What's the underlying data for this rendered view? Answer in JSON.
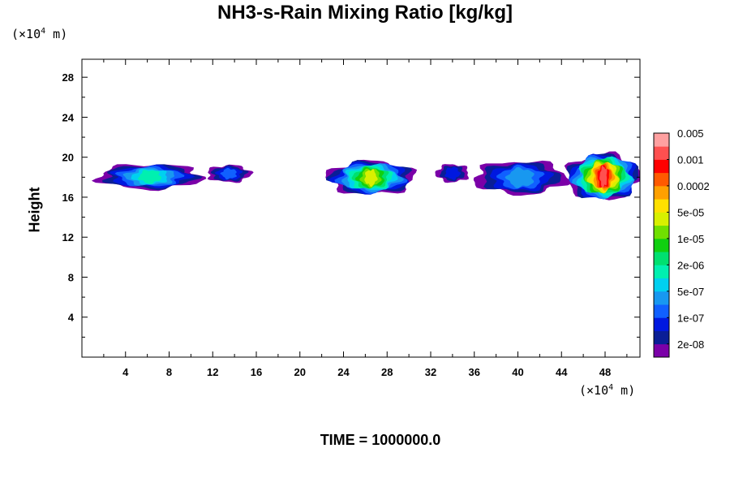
{
  "chart_data": {
    "type": "heatmap",
    "title": "NH3-s-Rain Mixing Ratio [kg/kg]",
    "ylabel": "Height",
    "x_unit": {
      "prefix": "(×10",
      "exp": "4",
      "suffix": " m)"
    },
    "y_unit": {
      "prefix": "(×10",
      "exp": "4",
      "suffix": " m)"
    },
    "footer": "TIME = 1000000.0",
    "xlim": [
      0,
      51.2
    ],
    "ylim": [
      0,
      29.8
    ],
    "x_ticks": [
      4,
      8,
      12,
      16,
      20,
      24,
      28,
      32,
      36,
      40,
      44,
      48
    ],
    "y_ticks": [
      4,
      8,
      12,
      16,
      20,
      24,
      28
    ],
    "colorbar": {
      "colors": [
        "#7b00a8",
        "#0a1e96",
        "#0018e0",
        "#1060ff",
        "#1898f0",
        "#00d0f0",
        "#00f0b0",
        "#00e070",
        "#10d010",
        "#70e000",
        "#d8f000",
        "#ffe000",
        "#ffa000",
        "#ff5a00",
        "#ff0000",
        "#ff5050",
        "#ffa0a0"
      ],
      "labels": [
        "2e-08",
        "1e-07",
        "5e-07",
        "2e-06",
        "1e-05",
        "5e-05",
        "0.0002",
        "0.001",
        "0.005"
      ]
    },
    "regions": [
      {
        "x": [
          1.5,
          11.0
        ],
        "y": [
          16.8,
          19.3
        ],
        "peak": 6
      },
      {
        "x": [
          11.5,
          15.5
        ],
        "y": [
          17.5,
          19.2
        ],
        "peak": 3
      },
      {
        "x": [
          22.5,
          30.5
        ],
        "y": [
          16.3,
          19.6
        ],
        "peak": 10
      },
      {
        "x": [
          32.5,
          35.5
        ],
        "y": [
          17.5,
          19.3
        ],
        "peak": 2
      },
      {
        "x": [
          36.0,
          44.5
        ],
        "y": [
          16.3,
          19.6
        ],
        "peak": 4
      },
      {
        "x": [
          44.5,
          51.2
        ],
        "y": [
          15.8,
          20.3
        ],
        "peak": 15
      }
    ]
  }
}
